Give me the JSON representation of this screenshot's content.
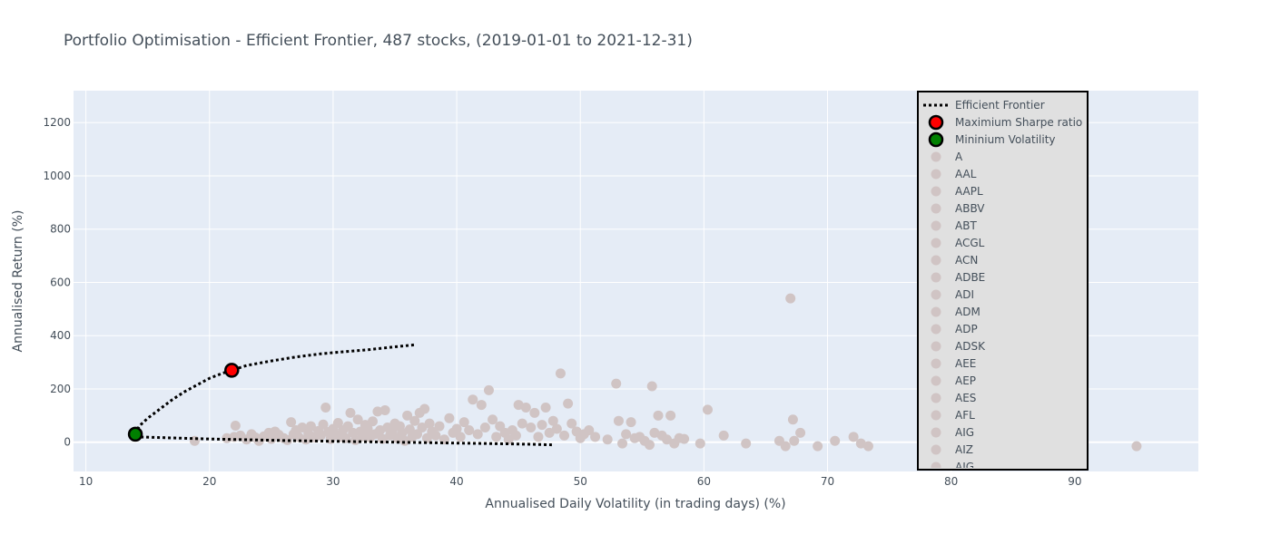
{
  "chart_data": {
    "type": "scatter",
    "title": "Portfolio Optimisation - Efficient Frontier, 487 stocks, (2019-01-01 to 2021-12-31)",
    "xlabel": "Annualised Daily Volatility (in trading days) (%)",
    "ylabel": "Annualised Return (%)",
    "xlim": [
      9,
      100
    ],
    "ylim": [
      -110,
      1320
    ],
    "xticks": [
      "10",
      "20",
      "30",
      "40",
      "50",
      "60",
      "70",
      "80",
      "90"
    ],
    "yticks": [
      "0",
      "200",
      "400",
      "600",
      "800",
      "1000",
      "1200"
    ],
    "grid": true,
    "legend_position": "top-right",
    "colors": {
      "plot_bg": "#e5ecf6",
      "stock": "#d0c4c4",
      "frontier": "#000000",
      "max_sharpe": "#ff0000",
      "min_vol": "#008000",
      "legend_bg": "#e0e0e0"
    },
    "frontier": {
      "name": "Efficient Frontier",
      "upper": [
        [
          14.0,
          30
        ],
        [
          14.3,
          60
        ],
        [
          15,
          90
        ],
        [
          16,
          125
        ],
        [
          17,
          160
        ],
        [
          18,
          190
        ],
        [
          19,
          215
        ],
        [
          20,
          240
        ],
        [
          21,
          258
        ],
        [
          21.8,
          270
        ],
        [
          23,
          288
        ],
        [
          25,
          305
        ],
        [
          27,
          320
        ],
        [
          29,
          332
        ],
        [
          31,
          340
        ],
        [
          33,
          348
        ],
        [
          35,
          358
        ],
        [
          36.7,
          366
        ]
      ],
      "lower": [
        [
          14.0,
          20
        ],
        [
          17,
          16
        ],
        [
          20,
          12
        ],
        [
          23,
          9
        ],
        [
          26,
          6
        ],
        [
          29,
          4
        ],
        [
          32,
          2
        ],
        [
          35,
          0
        ],
        [
          38,
          -2
        ],
        [
          41,
          -4
        ],
        [
          44,
          -6
        ],
        [
          46,
          -8
        ],
        [
          47.7,
          -10
        ]
      ]
    },
    "max_sharpe": {
      "name": "Maximium Sharpe ratio",
      "x": 21.8,
      "y": 270
    },
    "min_volatility": {
      "name": "Mininium Volatility",
      "x": 14.0,
      "y": 30
    },
    "legend_entries": [
      "A",
      "AAL",
      "AAPL",
      "ABBV",
      "ABT",
      "ACGL",
      "ACN",
      "ADBE",
      "ADI",
      "ADM",
      "ADP",
      "ADSK",
      "AEE",
      "AEP",
      "AES",
      "AFL",
      "AIG",
      "AIZ",
      "AJG"
    ],
    "stocks": [
      [
        18.8,
        5
      ],
      [
        21.4,
        15
      ],
      [
        22,
        20
      ],
      [
        22.1,
        62
      ],
      [
        22.5,
        25
      ],
      [
        23,
        10
      ],
      [
        23.4,
        30
      ],
      [
        23.7,
        18
      ],
      [
        24,
        5
      ],
      [
        24.4,
        22
      ],
      [
        24.8,
        35
      ],
      [
        25,
        12
      ],
      [
        25.3,
        40
      ],
      [
        25.6,
        28
      ],
      [
        26,
        15
      ],
      [
        26.3,
        8
      ],
      [
        26.6,
        75
      ],
      [
        26.8,
        30
      ],
      [
        27,
        45
      ],
      [
        27.2,
        20
      ],
      [
        27.5,
        55
      ],
      [
        27.8,
        10
      ],
      [
        28,
        32
      ],
      [
        28.2,
        60
      ],
      [
        28.5,
        18
      ],
      [
        28.8,
        42
      ],
      [
        29,
        25
      ],
      [
        29.2,
        66
      ],
      [
        29.4,
        130
      ],
      [
        29.6,
        38
      ],
      [
        29.8,
        12
      ],
      [
        30,
        50
      ],
      [
        30.2,
        28
      ],
      [
        30.4,
        72
      ],
      [
        30.6,
        20
      ],
      [
        30.8,
        45
      ],
      [
        31,
        15
      ],
      [
        31.2,
        60
      ],
      [
        31.4,
        110
      ],
      [
        31.6,
        35
      ],
      [
        31.8,
        8
      ],
      [
        32,
        85
      ],
      [
        32.2,
        40
      ],
      [
        32.4,
        22
      ],
      [
        32.6,
        65
      ],
      [
        32.8,
        50
      ],
      [
        33,
        18
      ],
      [
        33.2,
        78
      ],
      [
        33.4,
        30
      ],
      [
        33.6,
        115
      ],
      [
        33.8,
        45
      ],
      [
        34,
        12
      ],
      [
        34.2,
        120
      ],
      [
        34.4,
        55
      ],
      [
        34.6,
        25
      ],
      [
        34.8,
        40
      ],
      [
        35,
        70
      ],
      [
        35.2,
        15
      ],
      [
        35.4,
        60
      ],
      [
        35.6,
        35
      ],
      [
        35.8,
        5
      ],
      [
        36,
        100
      ],
      [
        36.2,
        48
      ],
      [
        36.4,
        20
      ],
      [
        36.6,
        80
      ],
      [
        36.8,
        30
      ],
      [
        37,
        110
      ],
      [
        37.2,
        55
      ],
      [
        37.4,
        125
      ],
      [
        37.6,
        15
      ],
      [
        37.8,
        70
      ],
      [
        38,
        40
      ],
      [
        38.3,
        25
      ],
      [
        38.6,
        60
      ],
      [
        39,
        10
      ],
      [
        39.4,
        90
      ],
      [
        39.7,
        35
      ],
      [
        40,
        50
      ],
      [
        40.3,
        20
      ],
      [
        40.6,
        75
      ],
      [
        41,
        45
      ],
      [
        41.3,
        160
      ],
      [
        41.7,
        30
      ],
      [
        42,
        140
      ],
      [
        42.3,
        55
      ],
      [
        42.6,
        195
      ],
      [
        42.9,
        85
      ],
      [
        43.2,
        20
      ],
      [
        43.5,
        60
      ],
      [
        43.9,
        35
      ],
      [
        44.2,
        10
      ],
      [
        44.5,
        45
      ],
      [
        44.8,
        25
      ],
      [
        45,
        140
      ],
      [
        45.3,
        70
      ],
      [
        45.6,
        130
      ],
      [
        46,
        55
      ],
      [
        46.3,
        110
      ],
      [
        46.6,
        20
      ],
      [
        46.9,
        65
      ],
      [
        47.2,
        130
      ],
      [
        47.5,
        35
      ],
      [
        47.8,
        80
      ],
      [
        48.1,
        50
      ],
      [
        48.4,
        258
      ],
      [
        48.7,
        25
      ],
      [
        49,
        145
      ],
      [
        49.3,
        70
      ],
      [
        49.7,
        40
      ],
      [
        50,
        15
      ],
      [
        50.3,
        30
      ],
      [
        50.7,
        45
      ],
      [
        51.2,
        20
      ],
      [
        52.2,
        10
      ],
      [
        52.9,
        220
      ],
      [
        53.1,
        80
      ],
      [
        53.4,
        -5
      ],
      [
        53.7,
        30
      ],
      [
        54.1,
        75
      ],
      [
        54.4,
        15
      ],
      [
        54.8,
        20
      ],
      [
        55.2,
        5
      ],
      [
        55.6,
        -10
      ],
      [
        55.8,
        210
      ],
      [
        56,
        35
      ],
      [
        56.3,
        100
      ],
      [
        56.6,
        25
      ],
      [
        57,
        10
      ],
      [
        57.3,
        100
      ],
      [
        57.6,
        -5
      ],
      [
        58,
        15
      ],
      [
        58.4,
        12
      ],
      [
        59.7,
        -5
      ],
      [
        60.3,
        122
      ],
      [
        61.6,
        25
      ],
      [
        63.4,
        -5
      ],
      [
        66.1,
        5
      ],
      [
        66.6,
        -15
      ],
      [
        67,
        540
      ],
      [
        67.2,
        85
      ],
      [
        67.3,
        5
      ],
      [
        67.8,
        35
      ],
      [
        69.2,
        -15
      ],
      [
        70.6,
        5
      ],
      [
        72.1,
        20
      ],
      [
        72.7,
        -5
      ],
      [
        73.3,
        -15
      ],
      [
        95,
        -15
      ]
    ]
  }
}
